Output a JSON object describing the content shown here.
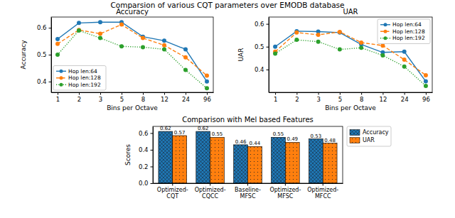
{
  "title": "Comparsion of various CQT parameters over EMODB database",
  "chart_data": [
    {
      "type": "line",
      "title": "Accuracy",
      "x_label": "Bins per Octave",
      "y_label": "Accuracy",
      "categories": [
        "1",
        "2",
        "3",
        "5",
        "8",
        "12",
        "24",
        "96"
      ],
      "ylim": [
        0.36,
        0.64
      ],
      "yticks": [
        0.4,
        0.5,
        0.6
      ],
      "grid": false,
      "legend": "lower left",
      "series": [
        {
          "name": "Hop len:64",
          "color": "#1f77b4",
          "marker": "circle",
          "line_style": "solid",
          "values": [
            0.558,
            0.618,
            0.621,
            0.621,
            0.567,
            0.552,
            0.52,
            0.4
          ]
        },
        {
          "name": "Hop len:128",
          "color": "#ff7f0e",
          "marker": "circle",
          "line_style": "dashed",
          "values": [
            0.54,
            0.592,
            0.578,
            0.612,
            0.562,
            0.535,
            0.49,
            0.422
          ]
        },
        {
          "name": "Hop len:192",
          "color": "#2ca02c",
          "marker": "circle",
          "line_style": "dotted",
          "values": [
            0.5,
            0.59,
            0.562,
            0.531,
            0.528,
            0.52,
            0.443,
            0.375
          ]
        }
      ]
    },
    {
      "type": "line",
      "title": "UAR",
      "x_label": "Bins per Octave",
      "y_label": "UAR",
      "categories": [
        "1",
        "2",
        "3",
        "5",
        "8",
        "12",
        "24",
        "96"
      ],
      "ylim": [
        0.3,
        0.63
      ],
      "yticks": [
        0.4,
        0.5,
        0.6
      ],
      "grid": false,
      "legend": "upper right",
      "series": [
        {
          "name": "Hop len:64",
          "color": "#1f77b4",
          "marker": "circle",
          "line_style": "solid",
          "values": [
            0.5,
            0.568,
            0.566,
            0.562,
            0.51,
            0.475,
            0.478,
            0.348
          ]
        },
        {
          "name": "Hop len:128",
          "color": "#ff7f0e",
          "marker": "circle",
          "line_style": "dashed",
          "values": [
            0.478,
            0.562,
            0.552,
            0.565,
            0.518,
            0.505,
            0.443,
            0.375
          ]
        },
        {
          "name": "Hop len:192",
          "color": "#2ca02c",
          "marker": "circle",
          "line_style": "dotted",
          "values": [
            0.47,
            0.53,
            0.522,
            0.488,
            0.495,
            0.462,
            0.413,
            0.328
          ]
        }
      ]
    },
    {
      "type": "bar",
      "title": "Comparison with Mel based Features",
      "y_label": "Scores",
      "categories": [
        "Optimized-\nCQT",
        "Optimized-\nCQCC",
        "Baseline-\nMFSC",
        "Optimized-\nMFSC",
        "Optimized-\nMFCC"
      ],
      "ylim": [
        0,
        0.68
      ],
      "yticks": [
        {
          "value": 0,
          "label": "0.0"
        },
        0.2,
        0.4,
        0.6
      ],
      "grid": false,
      "legend": "upper right",
      "data_labels": true,
      "series": [
        {
          "name": "Accuracy",
          "color": "#1f77b4",
          "values": [
            0.62,
            0.62,
            0.46,
            0.55,
            0.53
          ]
        },
        {
          "name": "UAR",
          "color": "#ff7f0e",
          "values": [
            0.57,
            0.55,
            0.44,
            0.49,
            0.48
          ]
        }
      ]
    }
  ]
}
